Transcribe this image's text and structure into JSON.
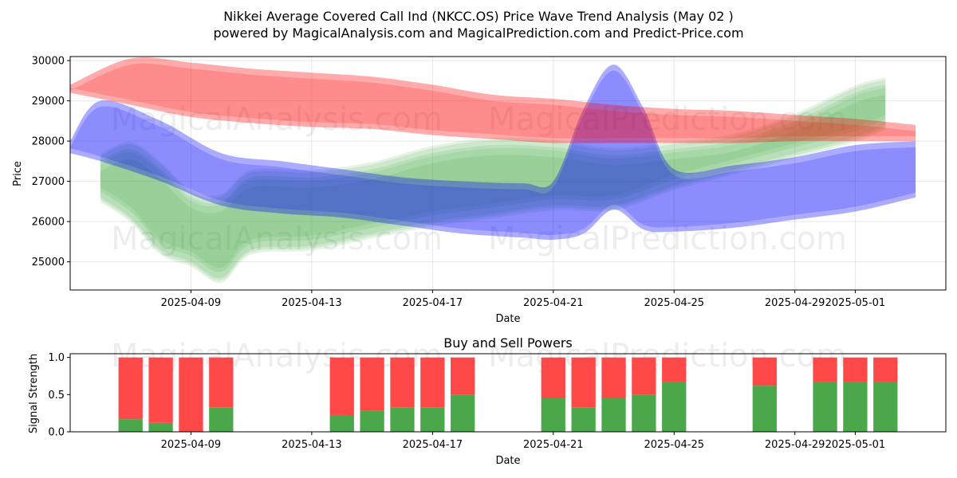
{
  "chart_data": [
    {
      "type": "area",
      "title": "Nikkei Average Covered Call Ind (NKCC.OS) Price Wave Trend Analysis (May 02 )",
      "subtitle": "powered by MagicalAnalysis.com and MagicalPrediction.com and Predict-Price.com",
      "xlabel": "Date",
      "ylabel": "Price",
      "x_range": [
        "2025-04-05",
        "2025-05-04"
      ],
      "ylim": [
        24300,
        30100
      ],
      "x_ticks": [
        "2025-04-09",
        "2025-04-13",
        "2025-04-17",
        "2025-04-21",
        "2025-04-25",
        "2025-04-29",
        "2025-05-01"
      ],
      "y_ticks": [
        25000,
        26000,
        27000,
        28000,
        29000,
        30000
      ],
      "grid": true,
      "watermarks": [
        "MagicalAnalysis.com",
        "MagicalPrediction.com"
      ],
      "series": [
        {
          "name": "red wave band",
          "color": "#ff0000",
          "x": [
            "2025-04-05",
            "2025-04-07",
            "2025-04-09",
            "2025-04-11",
            "2025-04-13",
            "2025-04-15",
            "2025-04-17",
            "2025-04-19",
            "2025-04-21",
            "2025-04-23",
            "2025-04-25",
            "2025-04-27",
            "2025-04-29",
            "2025-05-01",
            "2025-05-03"
          ],
          "upper": [
            29400,
            30050,
            29950,
            29800,
            29700,
            29600,
            29400,
            29150,
            29050,
            28900,
            28800,
            28750,
            28650,
            28550,
            28400
          ],
          "lower": [
            29200,
            28900,
            28600,
            28450,
            28350,
            28300,
            28150,
            28050,
            27950,
            27950,
            27950,
            27950,
            28000,
            28000,
            28000
          ]
        },
        {
          "name": "blue wave band",
          "color": "#0000ff",
          "x": [
            "2025-04-05",
            "2025-04-06",
            "2025-04-08",
            "2025-04-10",
            "2025-04-12",
            "2025-04-14",
            "2025-04-16",
            "2025-04-18",
            "2025-04-20",
            "2025-04-21",
            "2025-04-22",
            "2025-04-23",
            "2025-04-24",
            "2025-04-25",
            "2025-04-27",
            "2025-04-29",
            "2025-05-01",
            "2025-05-03"
          ],
          "upper": [
            28000,
            29000,
            28500,
            27700,
            27500,
            27300,
            27100,
            27000,
            26950,
            27000,
            28800,
            29900,
            28800,
            27300,
            27400,
            27600,
            27900,
            28000
          ],
          "lower": [
            27700,
            27500,
            27000,
            26400,
            26200,
            26100,
            25900,
            25700,
            25600,
            25550,
            25700,
            26300,
            25800,
            25750,
            25850,
            26050,
            26250,
            26600
          ]
        },
        {
          "name": "green wave band",
          "color": "#2ca02c",
          "x": [
            "2025-04-06",
            "2025-04-07",
            "2025-04-08",
            "2025-04-09",
            "2025-04-10",
            "2025-04-11",
            "2025-04-13",
            "2025-04-15",
            "2025-04-17",
            "2025-04-19",
            "2025-04-21",
            "2025-04-23",
            "2025-04-25",
            "2025-04-27",
            "2025-04-29",
            "2025-05-01",
            "2025-05-02"
          ],
          "upper": [
            27500,
            27800,
            27300,
            26600,
            26500,
            27100,
            27100,
            27300,
            27700,
            27900,
            27850,
            27650,
            27800,
            28000,
            28500,
            29200,
            29400
          ],
          "lower": [
            26600,
            26100,
            25300,
            25000,
            24600,
            25300,
            25400,
            25700,
            26000,
            26200,
            26400,
            26400,
            26900,
            27300,
            27700,
            28100,
            28400
          ]
        }
      ]
    },
    {
      "type": "bar",
      "title": "Buy and Sell Powers",
      "xlabel": "Date",
      "ylabel": "Signal Strength",
      "ylim": [
        0,
        1.05
      ],
      "y_ticks": [
        0.0,
        0.5,
        1.0
      ],
      "y_tick_labels": [
        "0.0",
        "0.5",
        "1.0"
      ],
      "x_ticks": [
        "2025-04-09",
        "2025-04-13",
        "2025-04-17",
        "2025-04-21",
        "2025-04-25",
        "2025-04-29",
        "2025-05-01"
      ],
      "x_range": [
        "2025-04-05",
        "2025-05-04"
      ],
      "categories": [
        "2025-04-07",
        "2025-04-08",
        "2025-04-09",
        "2025-04-10",
        "2025-04-14",
        "2025-04-15",
        "2025-04-16",
        "2025-04-17",
        "2025-04-18",
        "2025-04-21",
        "2025-04-22",
        "2025-04-23",
        "2025-04-24",
        "2025-04-25",
        "2025-04-28",
        "2025-04-30",
        "2025-05-01",
        "2025-05-02"
      ],
      "series": [
        {
          "name": "Buy",
          "color": "#4aa74a",
          "values": [
            0.17,
            0.12,
            0.0,
            0.33,
            0.22,
            0.28,
            0.33,
            0.33,
            0.5,
            0.45,
            0.33,
            0.45,
            0.5,
            0.67,
            0.62,
            0.67,
            0.67,
            0.67
          ]
        },
        {
          "name": "Sell",
          "color": "#ff4848",
          "values": [
            0.83,
            0.88,
            1.0,
            0.67,
            0.78,
            0.72,
            0.67,
            0.67,
            0.5,
            0.55,
            0.67,
            0.55,
            0.5,
            0.33,
            0.38,
            0.33,
            0.33,
            0.33
          ]
        }
      ],
      "watermarks": [
        "MagicalAnalysis.com",
        "MagicalPrediction.com"
      ]
    }
  ]
}
